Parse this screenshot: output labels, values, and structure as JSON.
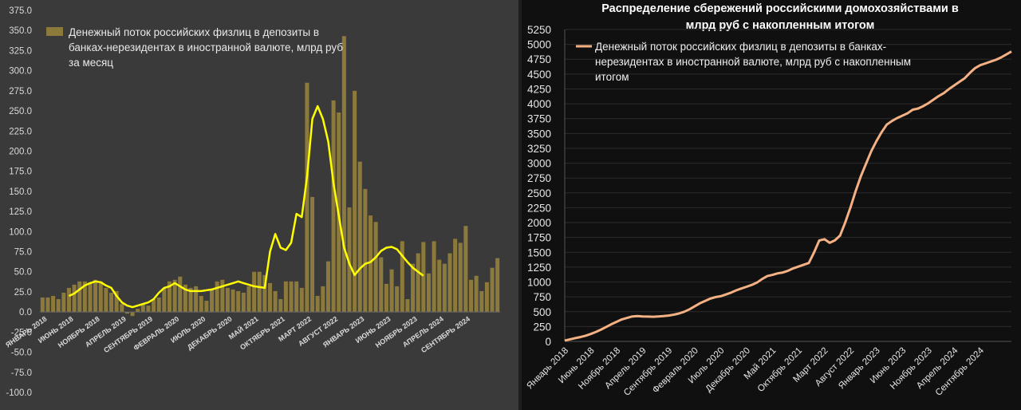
{
  "chart_data": [
    {
      "type": "bar",
      "title": "",
      "legend": "Денежный поток российских физлиц в депозиты в банках-нерезидентах в иностранной валюте, млрд руб за месяц",
      "legend_lines": [
        "Денежный поток российских физлиц в депозиты в",
        "банках-нерезидентах в иностранной валюте, млрд руб",
        "за месяц"
      ],
      "legend_position": "top-left",
      "ylim": [
        -100,
        375
      ],
      "yticks": [
        "375.0",
        "350.0",
        "325.0",
        "300.0",
        "275.0",
        "250.0",
        "225.0",
        "200.0",
        "175.0",
        "150.0",
        "125.0",
        "100.0",
        "75.0",
        "50.0",
        "25.0",
        "0.0",
        "-25.0",
        "-50.0",
        "-75.0",
        "-100.0"
      ],
      "xticks": [
        {
          "label": "ЯНВАРЬ 2018",
          "index": 0
        },
        {
          "label": "ИЮНЬ 2018",
          "index": 5
        },
        {
          "label": "НОЯБРЬ 2018",
          "index": 10
        },
        {
          "label": "АПРЕЛЬ 2019",
          "index": 15
        },
        {
          "label": "СЕНТЯБРЬ 2019",
          "index": 20
        },
        {
          "label": "ФЕВРАЛЬ 2020",
          "index": 25
        },
        {
          "label": "ИЮЛЬ 2020",
          "index": 30
        },
        {
          "label": "ДЕКАБРЬ 2020",
          "index": 35
        },
        {
          "label": "МАЙ 2021",
          "index": 40
        },
        {
          "label": "ОКТЯБРЬ 2021",
          "index": 45
        },
        {
          "label": "МАРТ 2022",
          "index": 50
        },
        {
          "label": "АВГУСТ 2022",
          "index": 55
        },
        {
          "label": "ЯНВАРЬ 2023",
          "index": 60
        },
        {
          "label": "ИЮНЬ 2023",
          "index": 65
        },
        {
          "label": "НОЯБРЬ 2023",
          "index": 70
        },
        {
          "label": "АПРЕЛЬ 2024",
          "index": 75
        },
        {
          "label": "СЕНТЯБРЬ 2024",
          "index": 80
        }
      ],
      "bar_color": "#8c7a3c",
      "line_color": "#ffff00",
      "series": [
        {
          "kind": "bar",
          "values": [
            18,
            18,
            20,
            16,
            24,
            30,
            34,
            38,
            38,
            36,
            40,
            38,
            30,
            24,
            26,
            10,
            -2,
            -5,
            4,
            10,
            8,
            16,
            18,
            30,
            38,
            40,
            44,
            34,
            30,
            32,
            20,
            14,
            28,
            38,
            40,
            30,
            28,
            26,
            24,
            32,
            50,
            50,
            46,
            36,
            26,
            16,
            38,
            38,
            38,
            30,
            285,
            143,
            20,
            32,
            63,
            263,
            248,
            343,
            130,
            275,
            187,
            153,
            120,
            112,
            68,
            35,
            53,
            32,
            88,
            16,
            60,
            73,
            87,
            48,
            88,
            65,
            60,
            73,
            91,
            86,
            107,
            40,
            45,
            26,
            37,
            55,
            67
          ]
        },
        {
          "kind": "line",
          "start_index": 5,
          "values": [
            20,
            23,
            28,
            33,
            36,
            38,
            37,
            33,
            30,
            20,
            12,
            8,
            6,
            8,
            10,
            12,
            16,
            24,
            30,
            32,
            36,
            32,
            28,
            26,
            26,
            26,
            27,
            28,
            30,
            32,
            34,
            36,
            38,
            36,
            34,
            32,
            31,
            30,
            75,
            97,
            80,
            77,
            86,
            122,
            118,
            168,
            240,
            256,
            240,
            212,
            160,
            120,
            80,
            60,
            46,
            54,
            60,
            62,
            68,
            76,
            80,
            81,
            78,
            70,
            62,
            55,
            50,
            45
          ]
        }
      ]
    },
    {
      "type": "line",
      "title_lines": [
        "Распределение сбережений российскими домохозяйствами в",
        "млрд руб с накопленным итогом"
      ],
      "legend_lines": [
        "Денежный поток российских физлиц в депозиты в банках-",
        "нерезидентах в иностранной валюте, млрд руб с накопленным",
        "итогом"
      ],
      "legend_position": "top-left",
      "ylim": [
        0,
        5250
      ],
      "yticks": [
        "5250",
        "5000",
        "4750",
        "4500",
        "4250",
        "4000",
        "3750",
        "3500",
        "3250",
        "3000",
        "2750",
        "2500",
        "2250",
        "2000",
        "1750",
        "1500",
        "1250",
        "1000",
        "750",
        "500",
        "250",
        "0"
      ],
      "xticks": [
        {
          "label": "Январь 2018",
          "index": 0
        },
        {
          "label": "Июнь 2018",
          "index": 5
        },
        {
          "label": "Ноябрь 2018",
          "index": 10
        },
        {
          "label": "Апрель 2019",
          "index": 15
        },
        {
          "label": "Сентябрь 2019",
          "index": 20
        },
        {
          "label": "Февраль 2020",
          "index": 25
        },
        {
          "label": "Июль 2020",
          "index": 30
        },
        {
          "label": "Декабрь 2020",
          "index": 35
        },
        {
          "label": "Май 2021",
          "index": 40
        },
        {
          "label": "Октябрь 2021",
          "index": 45
        },
        {
          "label": "Март 2022",
          "index": 50
        },
        {
          "label": "Август 2022",
          "index": 55
        },
        {
          "label": "Январь 2023",
          "index": 60
        },
        {
          "label": "Июнь 2023",
          "index": 65
        },
        {
          "label": "Ноябрь 2023",
          "index": 70
        },
        {
          "label": "Апрель 2024",
          "index": 75
        },
        {
          "label": "Сентябрь 2024",
          "index": 80
        }
      ],
      "line_color": "#f4b183",
      "series": [
        {
          "kind": "line",
          "values": [
            15,
            35,
            55,
            72,
            95,
            125,
            160,
            200,
            245,
            290,
            330,
            370,
            395,
            420,
            425,
            420,
            418,
            415,
            420,
            425,
            435,
            450,
            470,
            500,
            540,
            590,
            640,
            680,
            720,
            745,
            760,
            790,
            820,
            860,
            890,
            920,
            950,
            990,
            1050,
            1100,
            1120,
            1145,
            1160,
            1190,
            1230,
            1260,
            1290,
            1320,
            1500,
            1700,
            1720,
            1660,
            1700,
            1780,
            2000,
            2250,
            2530,
            2780,
            2990,
            3200,
            3370,
            3520,
            3650,
            3710,
            3760,
            3800,
            3840,
            3900,
            3920,
            3960,
            4010,
            4070,
            4130,
            4180,
            4250,
            4310,
            4370,
            4430,
            4520,
            4600,
            4650,
            4680,
            4710,
            4740,
            4780,
            4830,
            4880
          ]
        }
      ]
    }
  ]
}
